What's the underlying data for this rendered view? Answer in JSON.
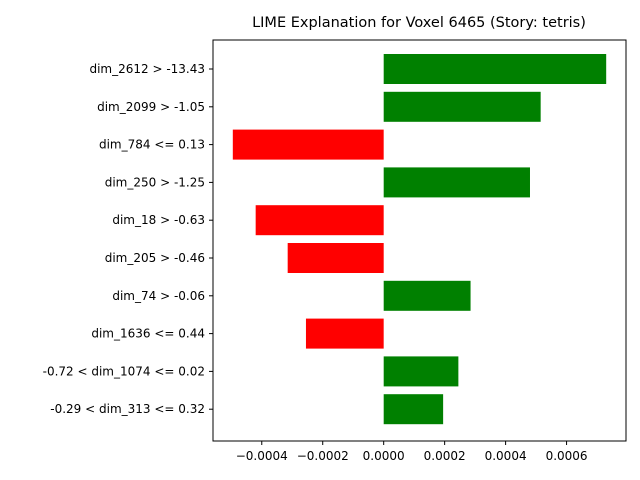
{
  "chart_data": {
    "type": "bar",
    "orientation": "horizontal",
    "title": "LIME Explanation for Voxel 6465 (Story: tetris)",
    "xlabel": "",
    "ylabel": "",
    "categories": [
      "dim_2612 > -13.43",
      "dim_2099 > -1.05",
      "dim_784 <= 0.13",
      "dim_250 > -1.25",
      "dim_18 > -0.63",
      "dim_205 > -0.46",
      "dim_74 > -0.06",
      "dim_1636 <= 0.44",
      "-0.72 < dim_1074 <= 0.02",
      "-0.29 < dim_313 <= 0.32"
    ],
    "values": [
      0.00073,
      0.000515,
      -0.000495,
      0.00048,
      -0.00042,
      -0.000315,
      0.000285,
      -0.000255,
      0.000245,
      0.000195
    ],
    "xlim": [
      -0.00056,
      0.000795
    ],
    "xticks": [
      -0.0004,
      -0.0002,
      0.0,
      0.0002,
      0.0004,
      0.0006
    ],
    "xtick_labels": [
      "−0.0004",
      "−0.0002",
      "0.0000",
      "0.0002",
      "0.0004",
      "0.0006"
    ],
    "grid": false,
    "legend": "none",
    "colors": {
      "positive": "#008000",
      "negative": "#ff0000",
      "axis": "#000000"
    }
  }
}
